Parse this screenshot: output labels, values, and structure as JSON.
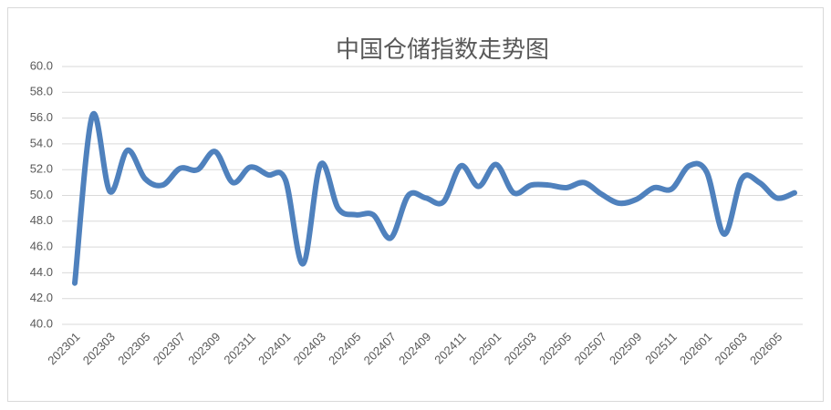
{
  "chart_data": {
    "type": "line",
    "title": "中国仓储指数走势图",
    "categories": [
      "202301",
      null,
      "202303",
      null,
      "202305",
      null,
      "202307",
      null,
      "202309",
      null,
      "202311",
      null,
      "202401",
      null,
      "202403",
      null,
      "202405",
      null,
      "202407",
      null,
      "202409",
      null,
      "202411",
      null,
      "202501",
      null,
      "202503",
      null,
      "202505",
      null,
      "202507",
      null,
      "202509",
      null,
      "202511",
      null,
      "202601",
      null,
      "202603",
      null,
      "202605",
      null
    ],
    "values": [
      43.2,
      56.2,
      50.3,
      53.5,
      51.3,
      50.8,
      52.1,
      52.0,
      53.4,
      51.0,
      52.2,
      51.6,
      51.2,
      44.7,
      52.4,
      49.0,
      48.5,
      48.5,
      46.7,
      50.0,
      49.8,
      49.5,
      52.3,
      50.7,
      52.4,
      50.2,
      50.8,
      50.8,
      50.6,
      51.0,
      50.1,
      49.4,
      49.7,
      50.6,
      50.5,
      52.3,
      51.8,
      47.0,
      51.3,
      51.0,
      49.8,
      50.2
    ],
    "color": "#4f81bd",
    "ylim": [
      40,
      60
    ],
    "yticks": [
      {
        "value": 40,
        "label": "40.0"
      },
      {
        "value": 42,
        "label": "42.0"
      },
      {
        "value": 44,
        "label": "44.0"
      },
      {
        "value": 46,
        "label": "46.0"
      },
      {
        "value": 48,
        "label": "48.0"
      },
      {
        "value": 50,
        "label": "50.0"
      },
      {
        "value": 52,
        "label": "52.0"
      },
      {
        "value": 54,
        "label": "54.0"
      },
      {
        "value": 56,
        "label": "56.0"
      },
      {
        "value": 58,
        "label": "58.0"
      },
      {
        "value": 60,
        "label": "60.0"
      }
    ],
    "grid": true
  }
}
